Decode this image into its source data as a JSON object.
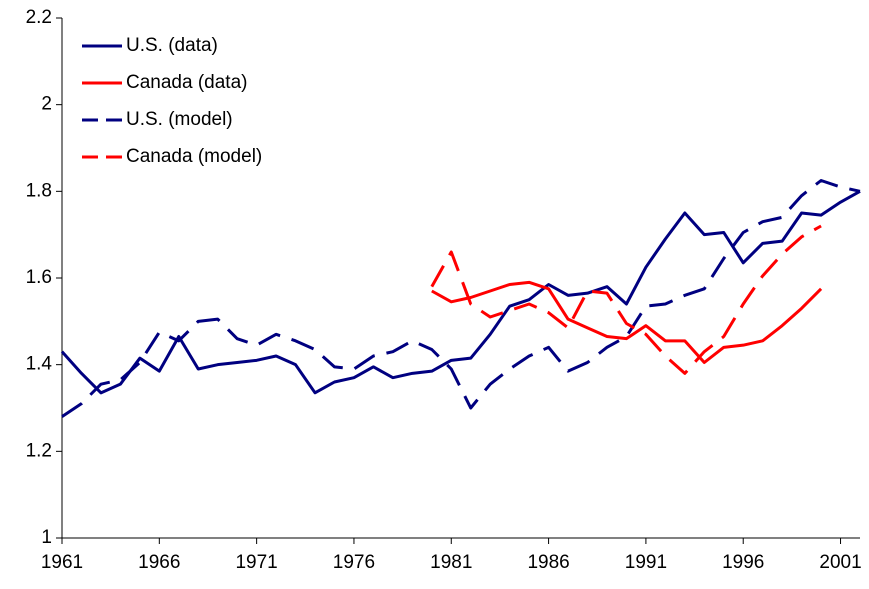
{
  "chart_data": {
    "type": "line",
    "x": [
      1961,
      1962,
      1963,
      1964,
      1965,
      1966,
      1967,
      1968,
      1969,
      1970,
      1971,
      1972,
      1973,
      1974,
      1975,
      1976,
      1977,
      1978,
      1979,
      1980,
      1981,
      1982,
      1983,
      1984,
      1985,
      1986,
      1987,
      1988,
      1989,
      1990,
      1991,
      1992,
      1993,
      1994,
      1995,
      1996,
      1997,
      1998,
      1999,
      2000,
      2001,
      2002
    ],
    "xlim": [
      1961,
      2002
    ],
    "xticks": [
      1961,
      1966,
      1971,
      1976,
      1981,
      1986,
      1991,
      1996,
      2001
    ],
    "ylim": [
      1,
      2.2
    ],
    "yticks": [
      1,
      1.2,
      1.4,
      1.6,
      1.8,
      2,
      2.2
    ],
    "grid": false,
    "legend": "top-left",
    "series": [
      {
        "name": "U.S. (data)",
        "color": "#000080",
        "dashed": false,
        "values": [
          1.43,
          1.38,
          1.335,
          1.355,
          1.415,
          1.385,
          1.465,
          1.39,
          1.4,
          1.405,
          1.41,
          1.42,
          1.4,
          1.335,
          1.36,
          1.37,
          1.395,
          1.37,
          1.38,
          1.385,
          1.41,
          1.415,
          1.47,
          1.535,
          1.55,
          1.585,
          1.56,
          1.565,
          1.58,
          1.54,
          1.625,
          1.69,
          1.75,
          1.7,
          1.705,
          1.635,
          1.68,
          1.685,
          1.75,
          1.745,
          1.775,
          1.8
        ]
      },
      {
        "name": "Canada (data)",
        "color": "#ff0000",
        "dashed": false,
        "values": [
          null,
          null,
          null,
          null,
          null,
          null,
          null,
          null,
          null,
          null,
          null,
          null,
          null,
          null,
          null,
          null,
          null,
          null,
          null,
          1.57,
          1.545,
          1.555,
          1.57,
          1.585,
          1.59,
          1.575,
          1.505,
          1.485,
          1.465,
          1.46,
          1.49,
          1.455,
          1.455,
          1.405,
          1.44,
          1.445,
          1.455,
          1.49,
          1.53,
          1.575,
          null,
          null
        ]
      },
      {
        "name": "U.S. (model)",
        "color": "#000080",
        "dashed": true,
        "values": [
          1.28,
          1.31,
          1.355,
          1.365,
          1.405,
          1.475,
          1.455,
          1.5,
          1.505,
          1.46,
          1.445,
          1.47,
          1.455,
          1.435,
          1.395,
          1.39,
          1.42,
          1.43,
          1.455,
          1.435,
          1.39,
          1.3,
          1.355,
          1.39,
          1.42,
          1.44,
          1.385,
          1.405,
          1.44,
          1.465,
          1.535,
          1.54,
          1.56,
          1.575,
          1.645,
          1.705,
          1.73,
          1.74,
          1.79,
          1.825,
          1.81,
          1.8
        ]
      },
      {
        "name": "Canada (model)",
        "color": "#ff0000",
        "dashed": true,
        "values": [
          null,
          null,
          null,
          null,
          null,
          null,
          null,
          null,
          null,
          null,
          null,
          null,
          null,
          null,
          null,
          null,
          null,
          null,
          null,
          1.58,
          1.66,
          1.54,
          1.51,
          1.525,
          1.54,
          1.52,
          1.485,
          1.57,
          1.565,
          1.495,
          1.47,
          1.42,
          1.38,
          1.43,
          1.465,
          1.54,
          1.605,
          1.655,
          1.695,
          1.72,
          null,
          null
        ]
      }
    ]
  }
}
